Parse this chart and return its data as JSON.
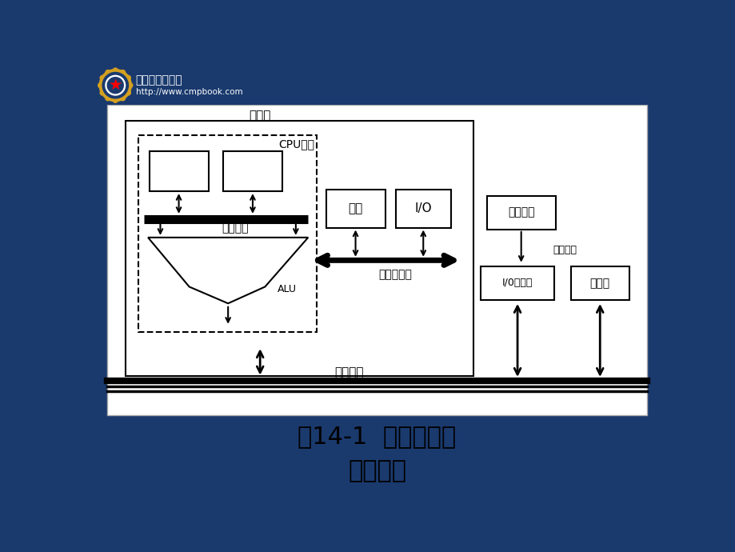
{
  "bg_color": "#1a3a6e",
  "white": "#ffffff",
  "black": "#000000",
  "title": "图14-1  微机各级总\n线示意图",
  "title_fontsize": 22,
  "label_zhujiban": "主机板",
  "label_cpu": "CPU芜片",
  "label_neicun": "内存",
  "label_io": "I/O",
  "label_alu": "ALU",
  "label_piannei": "片内总线",
  "label_yuanjian": "元件级总线",
  "label_xitong": "系统总线",
  "label_waibu": "外部设备",
  "label_tongxin": "通信总线",
  "label_io_jiekou": "I/0接口板",
  "label_cunchu": "存储板"
}
